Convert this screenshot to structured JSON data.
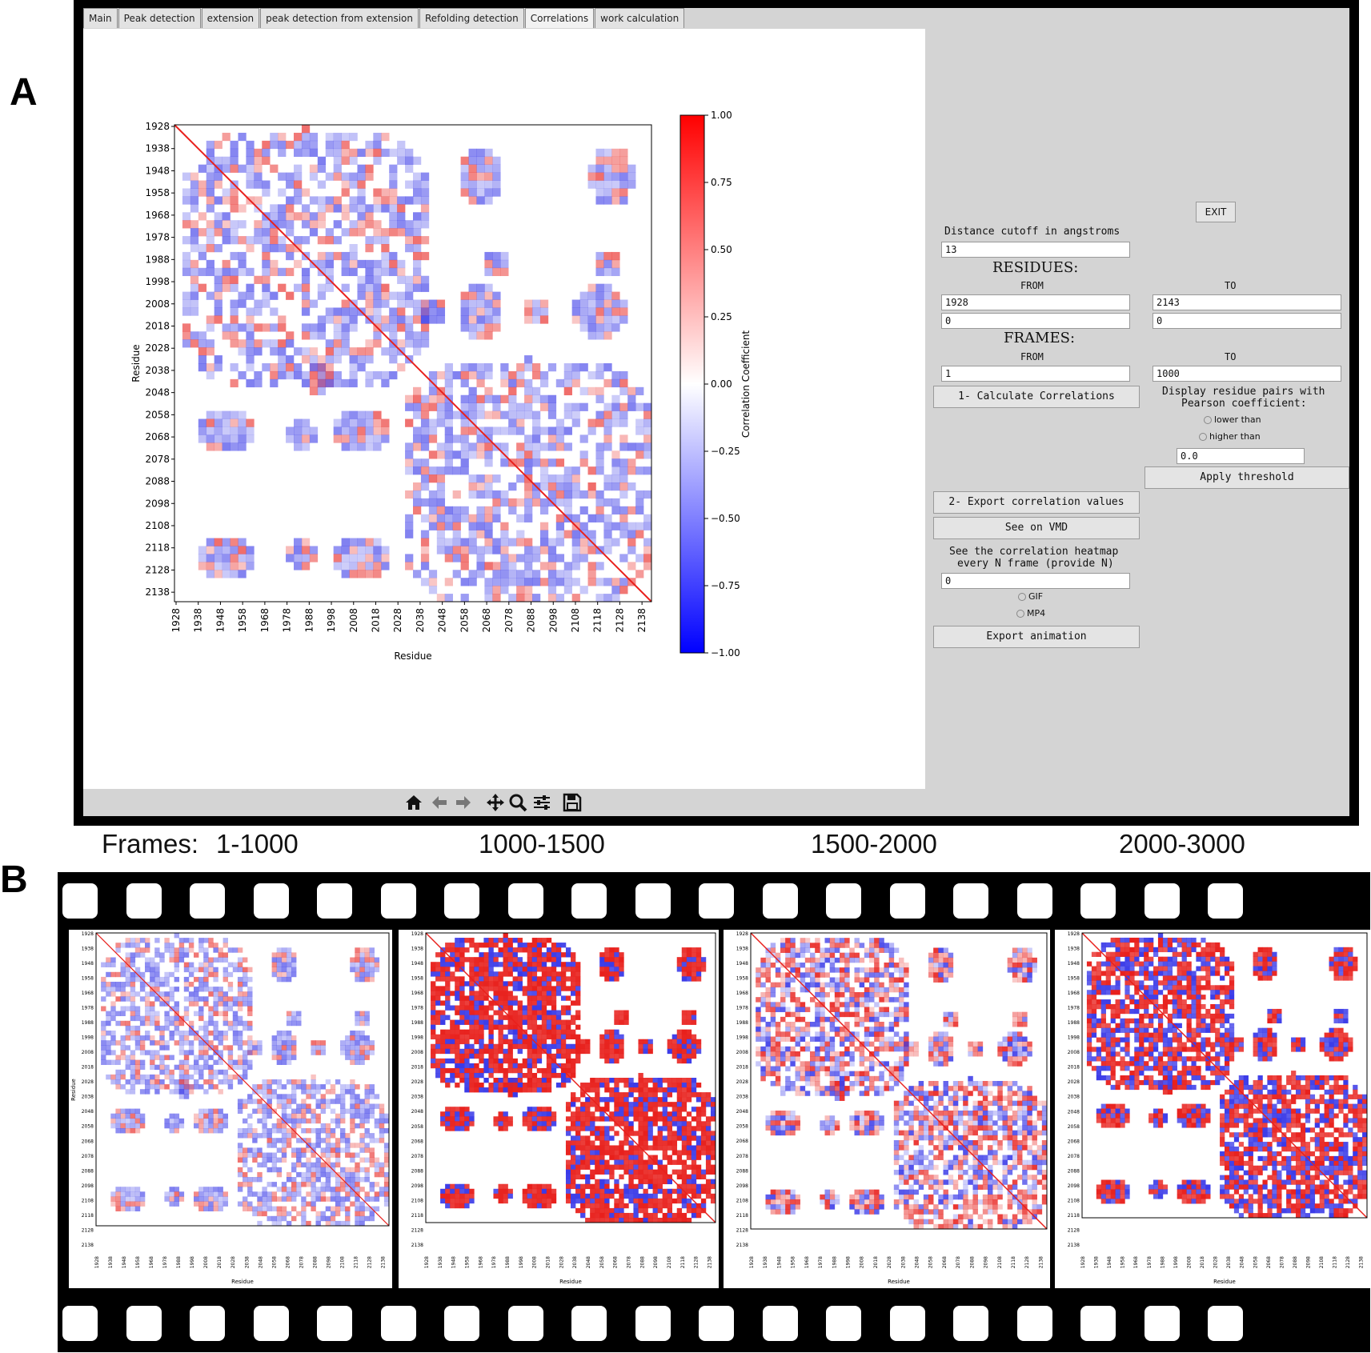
{
  "panel_labels": {
    "a": "A",
    "b": "B"
  },
  "tabs": [
    "Main",
    "Peak detection",
    "extension",
    "peak detection from extension",
    "Refolding detection",
    "Correlations",
    "work calculation"
  ],
  "active_tab": "Correlations",
  "heatmap": {
    "ticks": [
      "1928",
      "1938",
      "1948",
      "1958",
      "1968",
      "1978",
      "1988",
      "1998",
      "2008",
      "2018",
      "2028",
      "2038",
      "2048",
      "2058",
      "2068",
      "2078",
      "2088",
      "2098",
      "2108",
      "2118",
      "2128",
      "2138"
    ],
    "xlabel": "Residue",
    "ylabel": "Residue",
    "colorbar_label": "Correlation Coefficient",
    "colorbar_ticks": [
      "1.00",
      "0.75",
      "0.50",
      "0.25",
      "0.00",
      "−0.25",
      "−0.50",
      "−0.75",
      "−1.00"
    ],
    "colors": {
      "positive": "#e8201c",
      "negative": "#3a3ae8",
      "zero": "#ffffff"
    }
  },
  "side": {
    "exit_label": "EXIT",
    "cutoff_label": "Distance cutoff in angstroms",
    "cutoff_value": "13",
    "residues_label": "RESIDUES:",
    "from_label": "FROM",
    "to_label": "TO",
    "res_from_1": "1928",
    "res_from_2": "0",
    "res_to_1": "2143",
    "res_to_2": "0",
    "frames_label": "FRAMES:",
    "frame_from": "1",
    "frame_to": "1000",
    "calc_button": "1- Calculate Correlations",
    "display_label_1": "Display residue pairs with",
    "display_label_2": "Pearson coefficient:",
    "radio_lower": "lower than",
    "radio_higher": "higher than",
    "threshold_value": "0.0",
    "apply_button": "Apply threshold",
    "export_button": "2- Export correlation values",
    "vmd_button": "See on VMD",
    "heatmap_every_1": "See the correlation heatmap",
    "heatmap_every_2": "every N frame (provide N)",
    "n_value": "0",
    "radio_gif": "GIF",
    "radio_mp4": "MP4",
    "export_anim_button": "Export animation"
  },
  "toolbar": [
    "home-icon",
    "back-icon",
    "forward-icon",
    "pan-icon",
    "zoom-icon",
    "configure-icon",
    "save-icon"
  ],
  "frames": {
    "prefix": "Frames:",
    "ranges": [
      "1-1000",
      "1000-1500",
      "1500-2000",
      "2000-3000"
    ]
  },
  "film_ticks": [
    "1928",
    "1938",
    "1948",
    "1958",
    "1968",
    "1978",
    "1988",
    "1998",
    "2008",
    "2018",
    "2028",
    "2038",
    "2048",
    "2058",
    "2068",
    "2078",
    "2088",
    "2098",
    "2108",
    "2118",
    "2128",
    "2138"
  ],
  "film_xlabel": "Residue",
  "film_ylabel": "Residue"
}
